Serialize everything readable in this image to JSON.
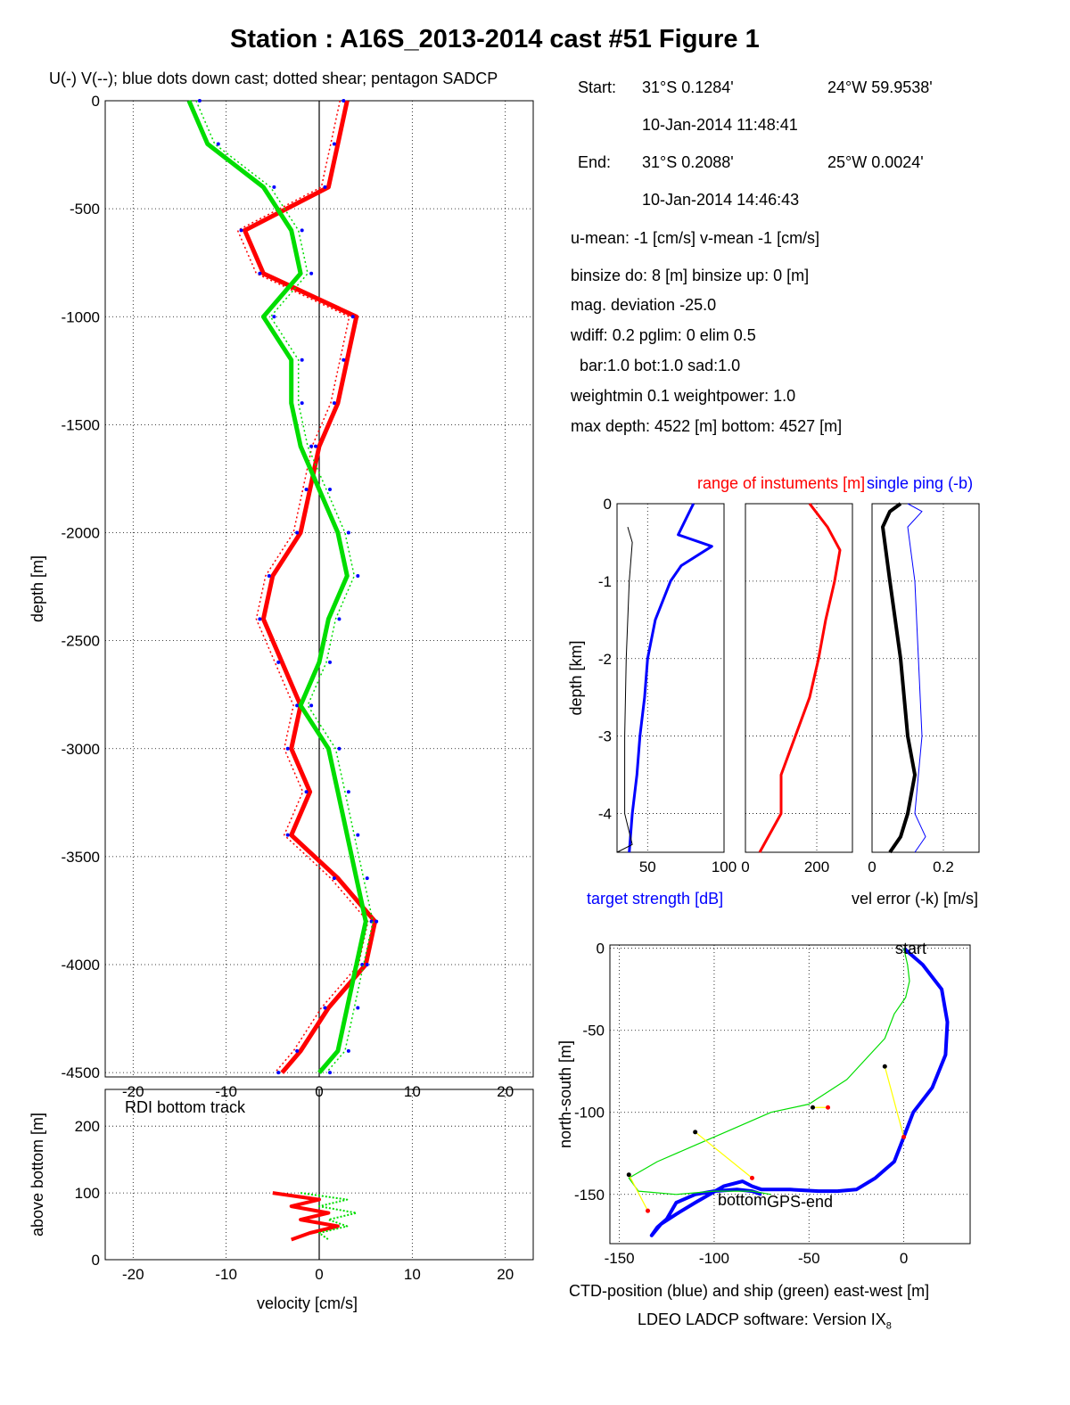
{
  "figure": {
    "title": "Station : A16S_2013-2014 cast #51  Figure 1",
    "footer": "LDEO LADCP software: Version IX",
    "footer_sub": "8"
  },
  "info": {
    "start_label": "Start:",
    "start_lat": "31°S  0.1284'",
    "start_lon": "24°W 59.9538'",
    "start_time": "10-Jan-2014 11:48:41",
    "end_label": "End:",
    "end_lat": "31°S  0.2088'",
    "end_lon": "25°W  0.0024'",
    "end_time": "10-Jan-2014 14:46:43",
    "means": "u-mean:  -1 [cm/s]    v-mean  -1 [cm/s]",
    "binsize": "binsize do: 8 [m]  binsize up:  0 [m]",
    "magdev": "mag. deviation -25.0",
    "wdiff": "wdiff: 0.2  pglim: 0  elim 0.5",
    "bar": "  bar:1.0 bot:1.0 sad:1.0",
    "weight": "weightmin 0.1  weightpower: 1.0",
    "depths": "max depth: 4522 [m]   bottom: 4527 [m]"
  },
  "colors": {
    "u": "#ff0000",
    "v": "#00dd00",
    "blue": "#0000ff",
    "black": "#000000",
    "yellow": "#ffff00"
  },
  "chart_data": [
    {
      "id": "main",
      "type": "line",
      "title": "U(-) V(--); blue dots down cast; dotted shear; pentagon SADCP",
      "xlabel": "",
      "ylabel": "depth [m]",
      "xlim": [
        -23,
        23
      ],
      "ylim": [
        -4520,
        0
      ],
      "xticks": [
        -20,
        -10,
        0,
        10,
        20
      ],
      "yticks": [
        0,
        -500,
        -1000,
        -1500,
        -2000,
        -2500,
        -3000,
        -3500,
        -4000,
        -4500
      ],
      "ytick_labels": [
        "0",
        "-500",
        "-1000",
        "-1500",
        "-2000",
        "-2500",
        "-3000",
        "-3500",
        "-4000",
        "-4500"
      ],
      "grid": true,
      "series": [
        {
          "name": "U(-)",
          "color": "#ff0000",
          "depth": [
            0,
            -200,
            -400,
            -600,
            -800,
            -1000,
            -1200,
            -1400,
            -1600,
            -1800,
            -2000,
            -2200,
            -2400,
            -2600,
            -2800,
            -3000,
            -3200,
            -3400,
            -3600,
            -3800,
            -4000,
            -4200,
            -4400,
            -4500
          ],
          "values": [
            3,
            2,
            1,
            -8,
            -6,
            4,
            3,
            2,
            0,
            -1,
            -2,
            -5,
            -6,
            -4,
            -2,
            -3,
            -1,
            -3,
            2,
            6,
            5,
            1,
            -2,
            -4
          ]
        },
        {
          "name": "V(--)",
          "color": "#00dd00",
          "depth": [
            0,
            -200,
            -400,
            -600,
            -800,
            -1000,
            -1200,
            -1400,
            -1600,
            -1800,
            -2000,
            -2200,
            -2400,
            -2600,
            -2800,
            -3000,
            -3200,
            -3400,
            -3600,
            -3800,
            -4000,
            -4200,
            -4400,
            -4500
          ],
          "values": [
            -14,
            -12,
            -6,
            -3,
            -2,
            -6,
            -3,
            -3,
            -2,
            0,
            2,
            3,
            1,
            0,
            -2,
            1,
            2,
            3,
            4,
            5,
            4,
            3,
            2,
            0
          ]
        }
      ]
    },
    {
      "id": "bottom-track",
      "type": "line",
      "title": "RDI bottom track",
      "xlabel": "velocity [cm/s]",
      "ylabel": "above bottom [m]",
      "xlim": [
        -23,
        23
      ],
      "ylim": [
        0,
        255
      ],
      "xticks": [
        -20,
        -10,
        0,
        10,
        20
      ],
      "yticks": [
        0,
        100,
        200
      ],
      "grid": true,
      "series": [
        {
          "name": "U",
          "color": "#ff0000",
          "height": [
            100,
            90,
            80,
            70,
            60,
            50,
            40,
            30
          ],
          "values": [
            -5,
            0,
            -3,
            1,
            -2,
            2,
            -1,
            -3
          ]
        },
        {
          "name": "V",
          "color": "#00dd00",
          "height": [
            100,
            90,
            80,
            70,
            60,
            50,
            40,
            30
          ],
          "values": [
            -2,
            3,
            0,
            4,
            1,
            3,
            0,
            1
          ]
        }
      ]
    },
    {
      "id": "target-strength",
      "type": "line",
      "title": "",
      "xlabel": "target strength [dB]",
      "ylabel": "depth [km]",
      "xlim": [
        30,
        100
      ],
      "ylim": [
        -4.5,
        0
      ],
      "xticks": [
        50,
        100
      ],
      "yticks": [
        0,
        -1,
        -2,
        -3,
        -4
      ],
      "grid": true,
      "series": [
        {
          "name": "",
          "color": "#0000ff",
          "depth": [
            0,
            -0.2,
            -0.4,
            -0.55,
            -0.8,
            -1.0,
            -1.5,
            -2.0,
            -2.5,
            -3.0,
            -3.5,
            -4.0,
            -4.5
          ],
          "values": [
            80,
            75,
            70,
            92,
            72,
            65,
            55,
            50,
            48,
            45,
            43,
            40,
            38
          ]
        },
        {
          "name": "",
          "color": "#000000",
          "depth": [
            -0.3,
            -0.5,
            -1.0,
            -2.0,
            -3.0,
            -4.0,
            -4.4,
            -4.5
          ],
          "values": [
            37,
            40,
            38,
            36,
            35,
            35,
            40,
            30
          ]
        }
      ]
    },
    {
      "id": "range",
      "type": "line",
      "title": "range of instuments [m]",
      "xlabel": "",
      "ylabel": "",
      "xlim": [
        0,
        300
      ],
      "ylim": [
        -4.5,
        0
      ],
      "xticks": [
        0,
        200
      ],
      "yticks": [
        0,
        -1,
        -2,
        -3,
        -4
      ],
      "grid": true,
      "series": [
        {
          "name": "",
          "color": "#ff0000",
          "depth": [
            0,
            -0.3,
            -0.6,
            -1.0,
            -1.5,
            -2.0,
            -2.5,
            -3.0,
            -3.5,
            -4.0,
            -4.5
          ],
          "values": [
            180,
            230,
            265,
            250,
            225,
            205,
            180,
            140,
            100,
            100,
            40
          ]
        }
      ]
    },
    {
      "id": "vel-error",
      "type": "line",
      "title": "single ping (-b)",
      "xlabel": "vel error (-k) [m/s]",
      "ylabel": "",
      "xlim": [
        0,
        0.3
      ],
      "ylim": [
        -4.5,
        0
      ],
      "xticks": [
        0,
        0.2
      ],
      "yticks": [
        0,
        -1,
        -2,
        -3,
        -4
      ],
      "grid": true,
      "series": [
        {
          "name": "",
          "color": "#000000",
          "depth": [
            0,
            -0.1,
            -0.3,
            -1.0,
            -2.0,
            -3.0,
            -3.5,
            -4.0,
            -4.3,
            -4.5
          ],
          "values": [
            0.08,
            0.05,
            0.03,
            0.05,
            0.08,
            0.1,
            0.12,
            0.1,
            0.08,
            0.05
          ]
        },
        {
          "name": "single ping (-b)",
          "color": "#0000ff",
          "depth": [
            0,
            -0.1,
            -0.3,
            -1.0,
            -2.0,
            -3.0,
            -3.5,
            -4.0,
            -4.3,
            -4.5
          ],
          "values": [
            0.1,
            0.14,
            0.1,
            0.12,
            0.13,
            0.14,
            0.13,
            0.12,
            0.15,
            0.12
          ]
        }
      ]
    },
    {
      "id": "position",
      "type": "line",
      "title": "",
      "xlabel": "CTD-position (blue) and ship (green) east-west [m]",
      "ylabel": "north-south [m]",
      "xlim": [
        -155,
        35
      ],
      "ylim": [
        -180,
        2
      ],
      "xticks": [
        -150,
        -100,
        -50,
        0
      ],
      "yticks": [
        0,
        -50,
        -100,
        -150
      ],
      "grid": true,
      "annotations": [
        "start",
        "bottom",
        "GPS-end"
      ],
      "series": [
        {
          "name": "CTD-position (blue)",
          "color": "#0000ff",
          "x": [
            0,
            10,
            20,
            23,
            22,
            15,
            5,
            0,
            -5,
            -15,
            -25,
            -35,
            -45,
            -60,
            -75,
            -80,
            -85,
            -95,
            -110,
            -120,
            -128,
            -133,
            -130,
            -125,
            -120,
            -110,
            -100,
            -88,
            -80,
            -75
          ],
          "y": [
            0,
            -10,
            -25,
            -45,
            -65,
            -85,
            -100,
            -115,
            -130,
            -140,
            -147,
            -148,
            -148,
            -147,
            -147,
            -145,
            -142,
            -145,
            -155,
            -162,
            -168,
            -175,
            -170,
            -165,
            -155,
            -150,
            -148,
            -147,
            -148,
            -150
          ]
        },
        {
          "name": "ship (green)",
          "color": "#00dd00",
          "x": [
            0,
            2,
            3,
            1,
            -5,
            -10,
            -30,
            -50,
            -70,
            -90,
            -110,
            -130,
            -145,
            -140,
            -120,
            -100,
            -80,
            -70
          ],
          "y": [
            0,
            -10,
            -20,
            -30,
            -40,
            -55,
            -80,
            -95,
            -100,
            -110,
            -120,
            -130,
            -140,
            -148,
            -150,
            -148,
            -148,
            -150
          ]
        },
        {
          "name": "",
          "color": "#ffff00",
          "x": [
            -145,
            -135,
            -110,
            -80,
            -48,
            -40,
            -10,
            0
          ],
          "y": [
            -138,
            -160,
            -112,
            -140,
            -97,
            -97,
            -72,
            -115
          ]
        }
      ]
    }
  ]
}
